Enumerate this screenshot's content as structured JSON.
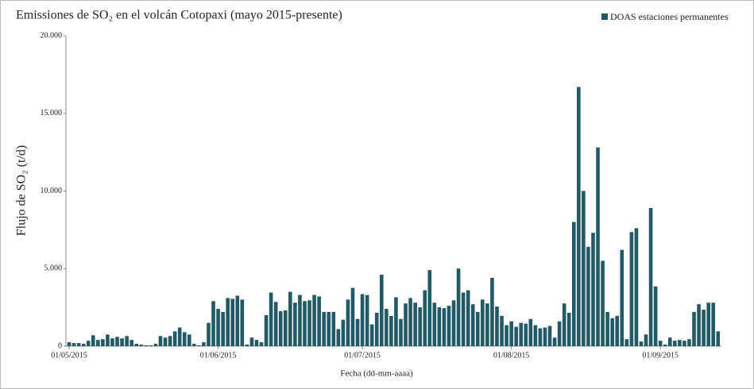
{
  "chart_data": {
    "type": "bar",
    "title": "Emissiones de SO₂ en el volcán Cotopaxi (mayo 2015-presente)",
    "y_label": "Flujo de SO₂ (t/d)",
    "x_label": "Fecha (dd-mm-aaaa)",
    "categories": [
      "01/05/2015",
      null,
      null,
      null,
      null,
      null,
      null,
      null,
      null,
      null,
      null,
      null,
      null,
      null,
      null,
      null,
      null,
      null,
      null,
      null,
      null,
      null,
      null,
      null,
      null,
      null,
      null,
      null,
      null,
      null,
      null,
      "01/06/2015",
      null,
      null,
      null,
      null,
      null,
      null,
      null,
      null,
      null,
      null,
      null,
      null,
      null,
      null,
      null,
      null,
      null,
      null,
      null,
      null,
      null,
      null,
      null,
      null,
      null,
      null,
      null,
      null,
      null,
      "01/07/2015",
      null,
      null,
      null,
      null,
      null,
      null,
      null,
      null,
      null,
      null,
      null,
      null,
      null,
      null,
      null,
      null,
      null,
      null,
      null,
      null,
      null,
      null,
      null,
      null,
      null,
      null,
      null,
      null,
      null,
      null,
      "01/08/2015",
      null,
      null,
      null,
      null,
      null,
      null,
      null,
      null,
      null,
      null,
      null,
      null,
      null,
      null,
      null,
      null,
      null,
      null,
      null,
      null,
      null,
      null,
      null,
      null,
      null,
      null,
      null,
      null,
      null,
      null,
      "01/09/2015",
      null,
      null,
      null,
      null,
      null,
      null,
      null,
      null,
      null,
      null,
      null,
      null
    ],
    "series": [
      {
        "name": "DOAS estaciones permanentes",
        "color": "#215a66",
        "values": [
          250,
          200,
          200,
          150,
          350,
          700,
          400,
          450,
          750,
          500,
          600,
          500,
          650,
          400,
          150,
          100,
          50,
          50,
          150,
          650,
          550,
          650,
          950,
          1200,
          900,
          750,
          150,
          50,
          250,
          1500,
          2900,
          2400,
          2200,
          3100,
          3050,
          3250,
          3000,
          100,
          550,
          400,
          250,
          2000,
          3450,
          2850,
          2250,
          2300,
          3500,
          2800,
          3300,
          2900,
          2950,
          3300,
          3200,
          2200,
          2200,
          2200,
          1100,
          1700,
          3000,
          3750,
          1750,
          3350,
          3300,
          1400,
          2150,
          4600,
          2400,
          1950,
          3150,
          1750,
          2750,
          3100,
          2800,
          2500,
          3600,
          4900,
          2800,
          2500,
          2450,
          2600,
          2950,
          5000,
          3450,
          3600,
          2700,
          2200,
          3000,
          2750,
          4400,
          2550,
          1950,
          1350,
          1600,
          1250,
          1500,
          1450,
          1750,
          1350,
          1150,
          1200,
          1300,
          550,
          1600,
          2750,
          2150,
          8000,
          16700,
          10000,
          6400,
          7300,
          12800,
          5500,
          2200,
          1800,
          1950,
          6200,
          450,
          7350,
          7600,
          300,
          750,
          8900,
          3850,
          350,
          100,
          550,
          350,
          400,
          350,
          450,
          2200,
          2700,
          2350,
          2800,
          2800,
          950
        ]
      }
    ],
    "ylim": [
      0,
      20000
    ],
    "yticks": [
      0,
      {
        "value": 5000,
        "label": "5.000"
      },
      {
        "value": 10000,
        "label": "10.000"
      },
      {
        "value": 15000,
        "label": "15.000"
      },
      {
        "value": 20000,
        "label": "20.000"
      }
    ],
    "grid": false,
    "legend": "top-right"
  }
}
